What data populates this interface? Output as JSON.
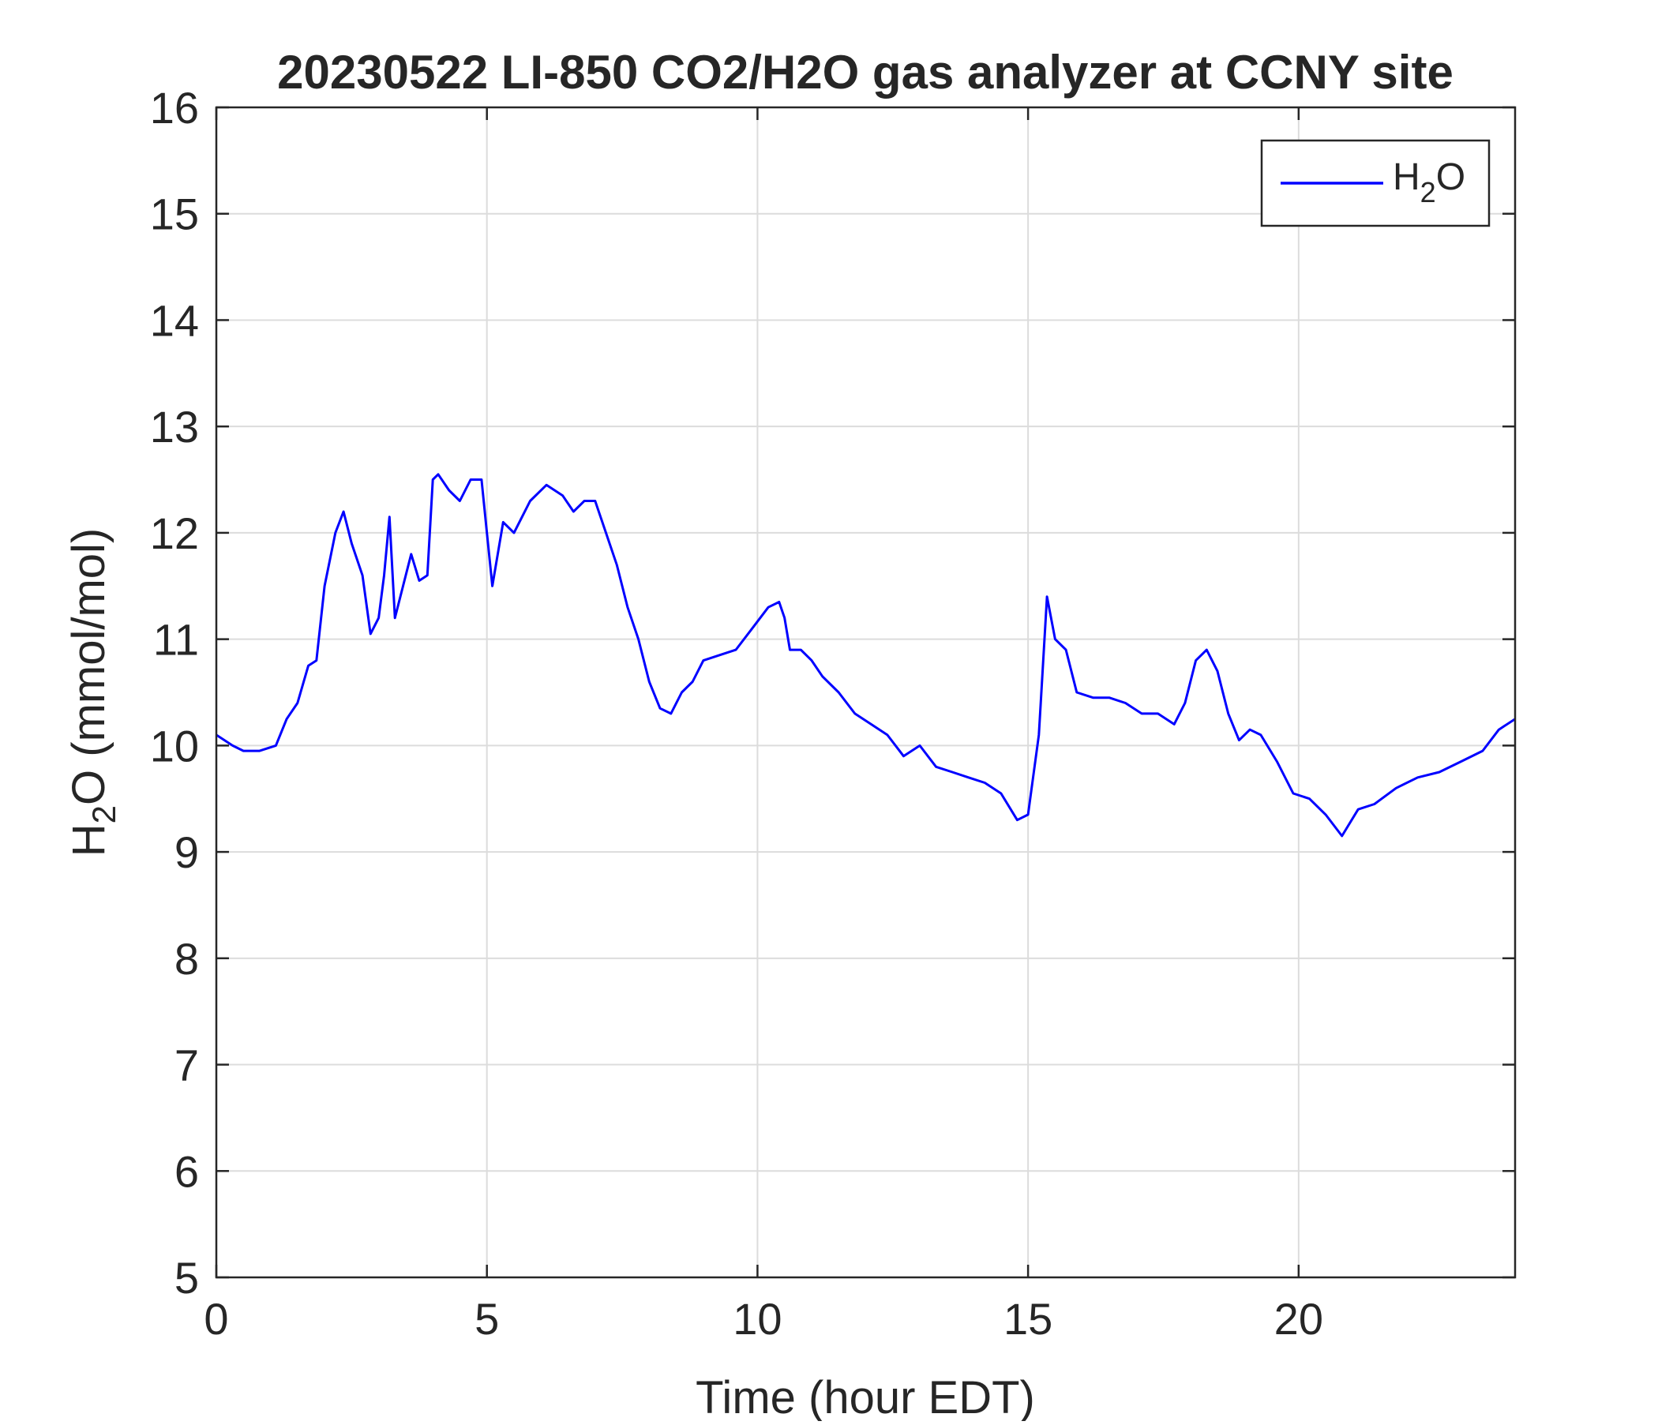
{
  "chart_data": {
    "type": "line",
    "title": "20230522 LI-850 CO2/H2O gas analyzer at CCNY site",
    "xlabel": "Time (hour EDT)",
    "ylabel": {
      "main": "H",
      "sub": "2",
      "rest": "O (mmol/mol)"
    },
    "xlim": [
      0,
      24
    ],
    "ylim": [
      5,
      16
    ],
    "xticks": [
      0,
      5,
      10,
      15,
      20
    ],
    "yticks": [
      5,
      6,
      7,
      8,
      9,
      10,
      11,
      12,
      13,
      14,
      15,
      16
    ],
    "grid": true,
    "legend": {
      "position": "top-right"
    },
    "series": [
      {
        "name": {
          "main": "H",
          "sub": "2",
          "rest": "O"
        },
        "color": "#0000ff",
        "x": [
          0,
          0.3,
          0.5,
          0.8,
          1.1,
          1.3,
          1.5,
          1.7,
          1.85,
          2.0,
          2.2,
          2.35,
          2.5,
          2.7,
          2.85,
          3.0,
          3.1,
          3.2,
          3.3,
          3.45,
          3.6,
          3.75,
          3.9,
          4.0,
          4.1,
          4.3,
          4.5,
          4.7,
          4.9,
          5.0,
          5.1,
          5.3,
          5.5,
          5.8,
          6.1,
          6.4,
          6.6,
          6.8,
          7.0,
          7.2,
          7.4,
          7.6,
          7.8,
          8.0,
          8.2,
          8.4,
          8.6,
          8.8,
          9.0,
          9.3,
          9.6,
          9.9,
          10.2,
          10.4,
          10.5,
          10.6,
          10.8,
          11.0,
          11.2,
          11.5,
          11.8,
          12.1,
          12.4,
          12.7,
          13.0,
          13.3,
          13.6,
          13.9,
          14.2,
          14.5,
          14.8,
          15.0,
          15.2,
          15.35,
          15.5,
          15.7,
          15.9,
          16.2,
          16.5,
          16.8,
          17.1,
          17.4,
          17.7,
          17.9,
          18.1,
          18.3,
          18.5,
          18.7,
          18.9,
          19.1,
          19.3,
          19.6,
          19.9,
          20.2,
          20.5,
          20.8,
          21.1,
          21.4,
          21.8,
          22.2,
          22.6,
          23.0,
          23.4,
          23.7,
          24.0
        ],
        "y": [
          10.1,
          10.0,
          9.95,
          9.95,
          10.0,
          10.25,
          10.4,
          10.75,
          10.8,
          11.5,
          12.0,
          12.2,
          11.9,
          11.6,
          11.05,
          11.2,
          11.6,
          12.15,
          11.2,
          11.5,
          11.8,
          11.55,
          11.6,
          12.5,
          12.55,
          12.4,
          12.3,
          12.5,
          12.5,
          12.0,
          11.5,
          12.1,
          12.0,
          12.3,
          12.45,
          12.35,
          12.2,
          12.3,
          12.3,
          12.0,
          11.7,
          11.3,
          11.0,
          10.6,
          10.35,
          10.3,
          10.5,
          10.6,
          10.8,
          10.85,
          10.9,
          11.1,
          11.3,
          11.35,
          11.2,
          10.9,
          10.9,
          10.8,
          10.65,
          10.5,
          10.3,
          10.2,
          10.1,
          9.9,
          10.0,
          9.8,
          9.75,
          9.7,
          9.65,
          9.55,
          9.3,
          9.35,
          10.1,
          11.4,
          11.0,
          10.9,
          10.5,
          10.45,
          10.45,
          10.4,
          10.3,
          10.3,
          10.2,
          10.4,
          10.8,
          10.9,
          10.7,
          10.3,
          10.05,
          10.15,
          10.1,
          9.85,
          9.55,
          9.5,
          9.35,
          9.15,
          9.4,
          9.45,
          9.6,
          9.7,
          9.75,
          9.85,
          9.95,
          10.15,
          10.25
        ]
      }
    ]
  }
}
